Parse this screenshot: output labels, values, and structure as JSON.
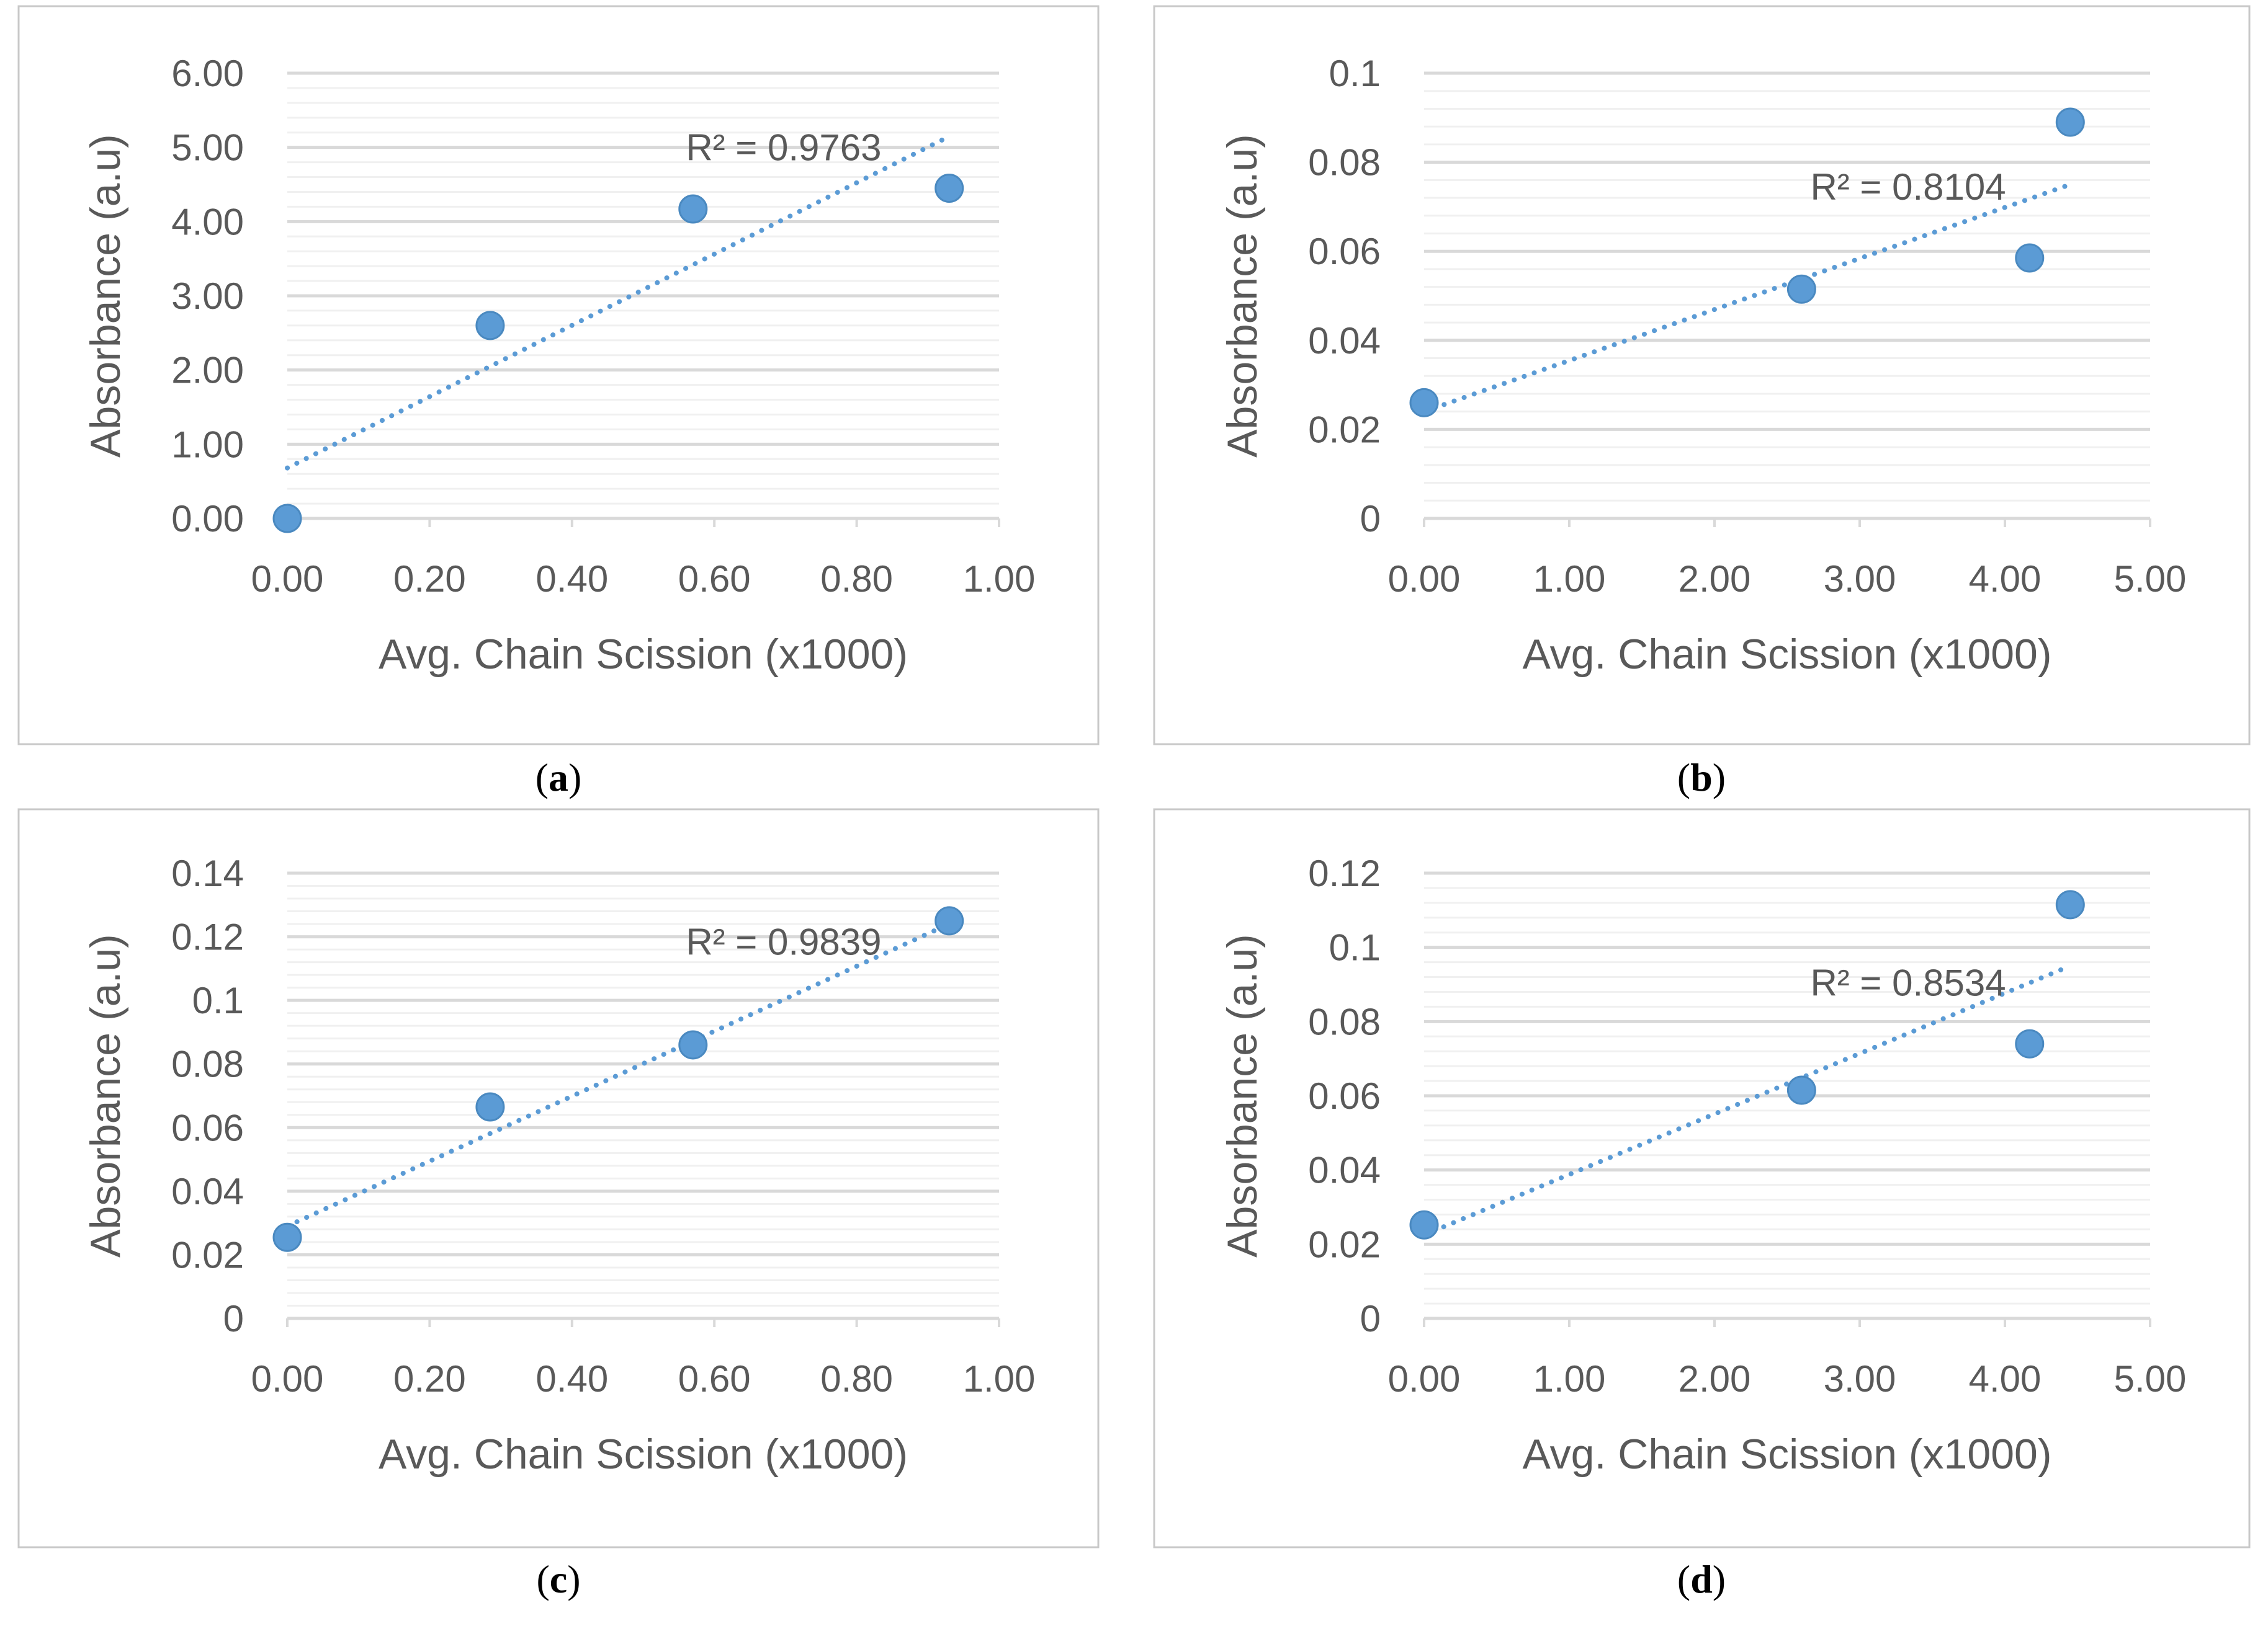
{
  "figure": {
    "panels": [
      "a",
      "b",
      "c",
      "d"
    ]
  },
  "colors": {
    "marker": "#5b9bd5",
    "trendline": "#5b9bd5",
    "major_grid": "#d9d9d9",
    "minor_grid": "#f0f0f0",
    "frame": "#c8c8c8",
    "text": "#595959"
  },
  "chart_data": [
    {
      "id": "a",
      "caption": {
        "open": "(",
        "letter": "a",
        "close": ")"
      },
      "type": "scatter",
      "xlabel": "Avg. Chain Scission (x1000)",
      "ylabel": "Absorbance (a.u)",
      "xlim": [
        0,
        1
      ],
      "ylim": [
        0,
        6
      ],
      "x_ticks": [
        0,
        0.2,
        0.4,
        0.6,
        0.8,
        1.0
      ],
      "x_tick_labels": [
        "0.00",
        "0.20",
        "0.40",
        "0.60",
        "0.80",
        "1.00"
      ],
      "y_ticks": [
        0,
        1,
        2,
        3,
        4,
        5,
        6
      ],
      "y_tick_labels": [
        "0.00",
        "1.00",
        "2.00",
        "3.00",
        "4.00",
        "5.00",
        "6.00"
      ],
      "minor_y_step": 0.2,
      "x": [
        0.0,
        0.285,
        0.57,
        0.93
      ],
      "y": [
        0.0,
        2.6,
        4.17,
        4.45
      ],
      "trendline": {
        "x0": 0.0,
        "y0": 0.68,
        "x1": 0.92,
        "y1": 5.1
      },
      "r2_text": "R² = 0.9763",
      "r2_anchor": {
        "x": 0.56,
        "y": 5.0
      }
    },
    {
      "id": "b",
      "caption": {
        "open": "(",
        "letter": "b",
        "close": ")"
      },
      "type": "scatter",
      "xlabel": "Avg. Chain Scission (x1000)",
      "ylabel": "Absorbance (a.u)",
      "xlim": [
        0,
        5
      ],
      "ylim": [
        0,
        0.1
      ],
      "x_ticks": [
        0,
        1,
        2,
        3,
        4,
        5
      ],
      "x_tick_labels": [
        "0.00",
        "1.00",
        "2.00",
        "3.00",
        "4.00",
        "5.00"
      ],
      "y_ticks": [
        0,
        0.02,
        0.04,
        0.06,
        0.08,
        0.1
      ],
      "y_tick_labels": [
        "0",
        "0.02",
        "0.04",
        "0.06",
        "0.08",
        "0.1"
      ],
      "minor_y_step": 0.004,
      "x": [
        0.0,
        2.6,
        4.17,
        4.45
      ],
      "y": [
        0.026,
        0.0515,
        0.0585,
        0.089
      ],
      "trendline": {
        "x0": 0.0,
        "y0": 0.024,
        "x1": 4.45,
        "y1": 0.075
      },
      "r2_text": "R² = 0.8104",
      "r2_anchor": {
        "x": 2.66,
        "y": 0.0745
      }
    },
    {
      "id": "c",
      "caption": {
        "open": "(",
        "letter": "c",
        "close": ")"
      },
      "type": "scatter",
      "xlabel": "Avg. Chain Scission (x1000)",
      "ylabel": "Absorbance (a.u)",
      "xlim": [
        0,
        1
      ],
      "ylim": [
        0,
        0.14
      ],
      "x_ticks": [
        0,
        0.2,
        0.4,
        0.6,
        0.8,
        1.0
      ],
      "x_tick_labels": [
        "0.00",
        "0.20",
        "0.40",
        "0.60",
        "0.80",
        "1.00"
      ],
      "y_ticks": [
        0,
        0.02,
        0.04,
        0.06,
        0.08,
        0.1,
        0.12,
        0.14
      ],
      "y_tick_labels": [
        "0",
        "0.02",
        "0.04",
        "0.06",
        "0.08",
        "0.1",
        "0.12",
        "0.14"
      ],
      "minor_y_step": 0.004,
      "x": [
        0.0,
        0.285,
        0.57,
        0.93
      ],
      "y": [
        0.0255,
        0.0665,
        0.086,
        0.125
      ],
      "trendline": {
        "x0": 0.0,
        "y0": 0.029,
        "x1": 0.92,
        "y1": 0.123
      },
      "r2_text": "R² = 0.9839",
      "r2_anchor": {
        "x": 0.56,
        "y": 0.1185
      }
    },
    {
      "id": "d",
      "caption": {
        "open": "(",
        "letter": "d",
        "close": ")"
      },
      "type": "scatter",
      "xlabel": "Avg. Chain Scission (x1000)",
      "ylabel": "Absorbance (a.u)",
      "xlim": [
        0,
        5
      ],
      "ylim": [
        0,
        0.12
      ],
      "x_ticks": [
        0,
        1,
        2,
        3,
        4,
        5
      ],
      "x_tick_labels": [
        "0.00",
        "1.00",
        "2.00",
        "3.00",
        "4.00",
        "5.00"
      ],
      "y_ticks": [
        0,
        0.02,
        0.04,
        0.06,
        0.08,
        0.1,
        0.12
      ],
      "y_tick_labels": [
        "0",
        "0.02",
        "0.04",
        "0.06",
        "0.08",
        "0.1",
        "0.12"
      ],
      "minor_y_step": 0.004,
      "x": [
        0.0,
        2.6,
        4.17,
        4.45
      ],
      "y": [
        0.0252,
        0.0615,
        0.074,
        0.1115
      ],
      "trendline": {
        "x0": 0.0,
        "y0": 0.0225,
        "x1": 4.45,
        "y1": 0.095
      },
      "r2_text": "R² = 0.8534",
      "r2_anchor": {
        "x": 2.66,
        "y": 0.0905
      }
    }
  ]
}
